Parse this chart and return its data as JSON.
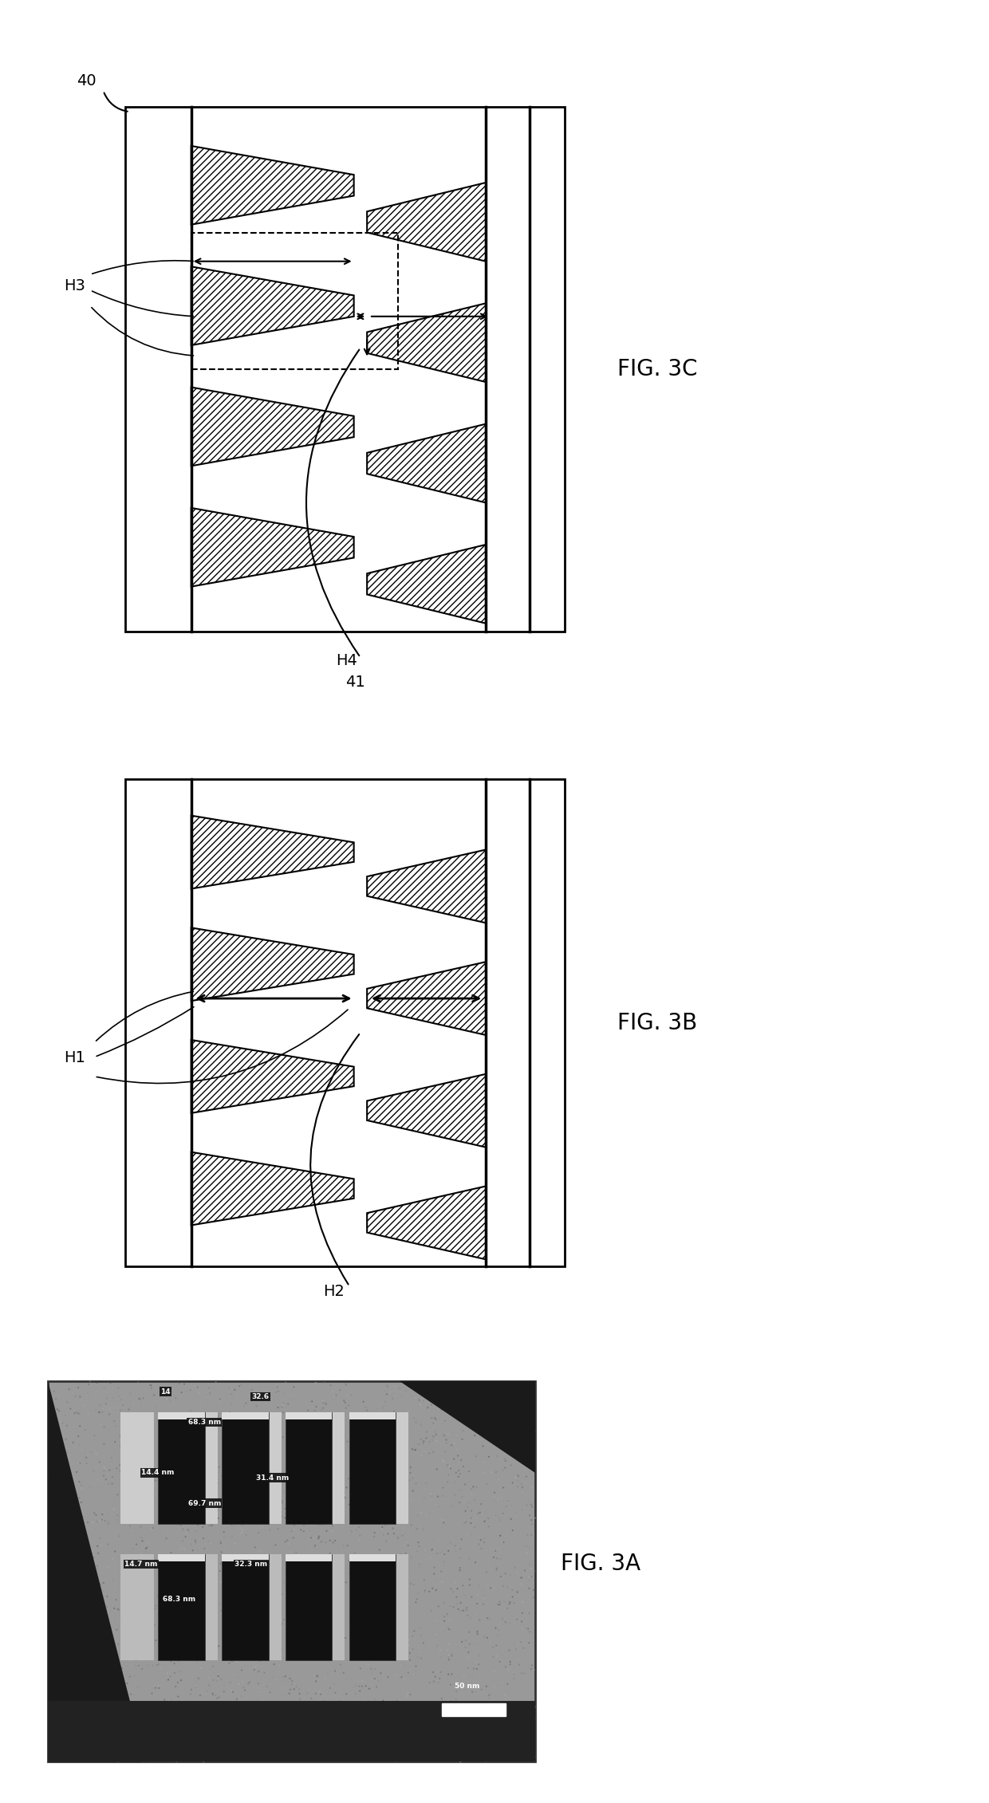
{
  "fig_width": 12.4,
  "fig_height": 22.61,
  "bg_color": "#ffffff",
  "line_color": "#000000",
  "fig3a_label": "FIG. 3A",
  "fig3b_label": "FIG. 3B",
  "fig3c_label": "FIG. 3C",
  "label_fontsize": 20,
  "annotation_fontsize": 11,
  "sem_bg": "#888888",
  "sem_fin_dark": "#111111",
  "sem_fin_light": "#cccccc",
  "sem_substrate_dark": "#222222",
  "sem_label_bg": "#111111"
}
